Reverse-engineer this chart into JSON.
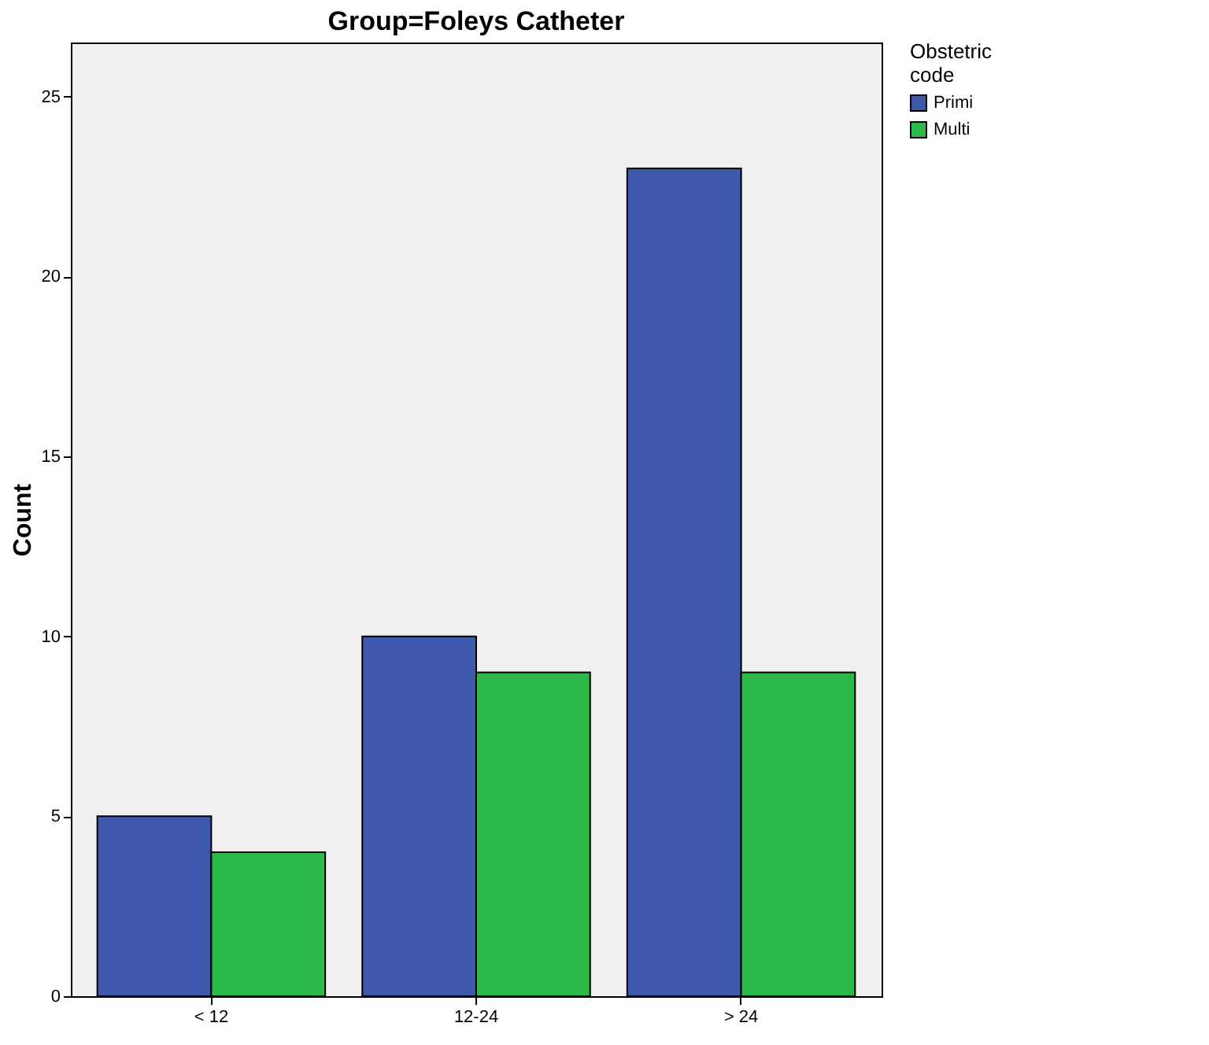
{
  "chart_data": {
    "type": "bar",
    "title": "Group=Foleys Catheter",
    "ylabel": "Count",
    "legend_title": "Obstetric code",
    "legend": "top right",
    "categories": [
      "< 12",
      "12-24",
      "> 24"
    ],
    "series": [
      {
        "name": "Primi",
        "color": "#3e58ac",
        "values": [
          5,
          10,
          23
        ]
      },
      {
        "name": "Multi",
        "color": "#2db84a",
        "values": [
          4,
          9,
          9
        ]
      }
    ],
    "ylim": [
      0,
      26.5
    ],
    "yticks": [
      0,
      5,
      10,
      15,
      20,
      25
    ],
    "grid": false
  }
}
